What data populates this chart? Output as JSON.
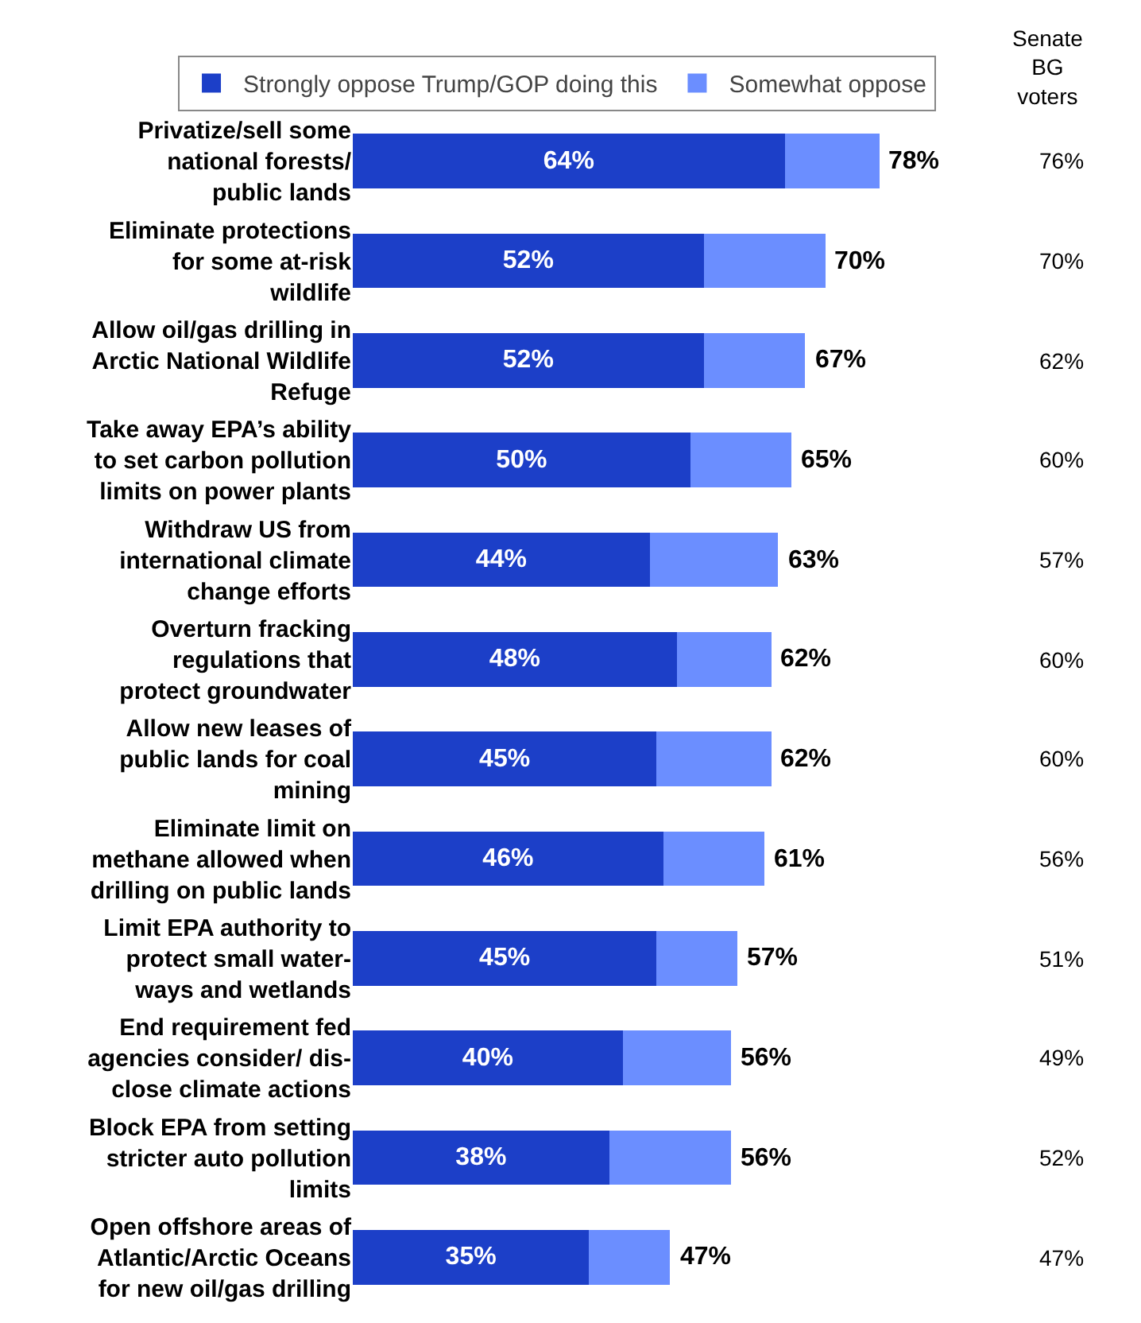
{
  "chart_data": {
    "type": "bar",
    "orientation": "horizontal",
    "stacked": true,
    "legend": "top",
    "grid": false,
    "categories": [
      "Privatize/sell some\nnational forests/\npublic lands",
      "Eliminate protections\nfor some at-risk\nwildlife",
      "Allow oil/gas drilling in\nArctic National Wildlife\nRefuge",
      "Take away EPA’s ability\nto set carbon pollution\nlimits on power plants",
      "Withdraw US from\ninternational climate\nchange efforts",
      "Overturn fracking\nregulations that\nprotect groundwater",
      "Allow new leases of\npublic lands for coal\nmining",
      "Eliminate limit on\nmethane allowed when\ndrilling on public lands",
      "Limit EPA authority to\nprotect small water-\nways and wetlands",
      "End requirement fed\nagencies consider/ dis-\nclose climate actions",
      "Block EPA from setting\nstricter auto pollution\nlimits",
      "Open offshore areas of\nAtlantic/Arctic Oceans\nfor new oil/gas drilling"
    ],
    "series": [
      {
        "name": "Strongly oppose Trump/GOP doing this",
        "color": "#1c3fc8",
        "values": [
          64,
          52,
          52,
          50,
          44,
          48,
          45,
          46,
          45,
          40,
          38,
          35
        ],
        "value_labels": [
          "64%",
          "52%",
          "52%",
          "50%",
          "44%",
          "48%",
          "45%",
          "46%",
          "45%",
          "40%",
          "38%",
          "35%"
        ]
      },
      {
        "name": "Somewhat oppose",
        "color": "#6b8eff",
        "values": [
          14,
          18,
          15,
          15,
          19,
          14,
          17,
          15,
          12,
          16,
          18,
          12
        ]
      }
    ],
    "totals": [
      "78%",
      "70%",
      "67%",
      "65%",
      "63%",
      "62%",
      "62%",
      "61%",
      "57%",
      "56%",
      "56%",
      "47%"
    ],
    "annotations": [
      "Senate\nBG\nvoters",
      "76%",
      "70%",
      "62%",
      "60%",
      "57%",
      "60%",
      "60%",
      "56%",
      "51%",
      "49%",
      "52%",
      "47%"
    ]
  }
}
